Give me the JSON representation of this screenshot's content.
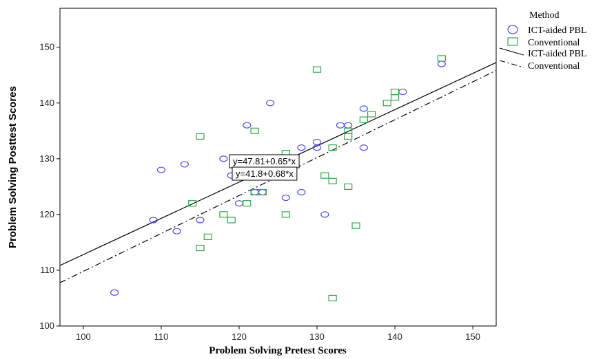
{
  "chart_data": {
    "type": "scatter",
    "xlabel": "Problem Solving Pretest Scores",
    "ylabel": "Problem Solving Posttest Scores",
    "xlim": [
      97,
      153
    ],
    "ylim": [
      100,
      157
    ],
    "x_ticks": [
      100,
      110,
      120,
      130,
      140,
      150
    ],
    "y_ticks": [
      100,
      110,
      120,
      130,
      140,
      150
    ],
    "grid": false,
    "legend": {
      "title": "Method",
      "placement": "right",
      "items": [
        {
          "label": "ICT-aided PBL",
          "symbol": "circle"
        },
        {
          "label": "Conventional",
          "symbol": "square"
        },
        {
          "label": "ICT-aided PBL",
          "symbol": "solid-line"
        },
        {
          "label": "Conventional",
          "symbol": "dash-dot-line"
        }
      ]
    },
    "series": [
      {
        "name": "ICT-aided PBL",
        "marker": "circle",
        "color": "#4b4bf5",
        "points": [
          [
            104,
            106
          ],
          [
            109,
            119
          ],
          [
            110,
            128
          ],
          [
            112,
            117
          ],
          [
            113,
            129
          ],
          [
            115,
            119
          ],
          [
            118,
            130
          ],
          [
            119,
            127
          ],
          [
            120,
            122
          ],
          [
            121,
            136
          ],
          [
            122,
            124
          ],
          [
            123,
            124
          ],
          [
            124,
            140
          ],
          [
            126,
            123
          ],
          [
            128,
            132
          ],
          [
            128,
            124
          ],
          [
            130,
            133
          ],
          [
            130,
            132
          ],
          [
            131,
            120
          ],
          [
            133,
            136
          ],
          [
            134,
            136
          ],
          [
            136,
            139
          ],
          [
            136,
            132
          ],
          [
            141,
            142
          ],
          [
            146,
            147
          ]
        ]
      },
      {
        "name": "Conventional",
        "marker": "square",
        "color": "#2ea84a",
        "points": [
          [
            114,
            122
          ],
          [
            115,
            134
          ],
          [
            115,
            114
          ],
          [
            116,
            116
          ],
          [
            118,
            120
          ],
          [
            119,
            119
          ],
          [
            121,
            122
          ],
          [
            122,
            135
          ],
          [
            122,
            124
          ],
          [
            123,
            124
          ],
          [
            126,
            131
          ],
          [
            126,
            120
          ],
          [
            130,
            146
          ],
          [
            131,
            127
          ],
          [
            132,
            132
          ],
          [
            132,
            126
          ],
          [
            132,
            105
          ],
          [
            134,
            135
          ],
          [
            134,
            134
          ],
          [
            134,
            125
          ],
          [
            135,
            118
          ],
          [
            136,
            137
          ],
          [
            137,
            138
          ],
          [
            139,
            140
          ],
          [
            140,
            141
          ],
          [
            140,
            142
          ],
          [
            146,
            148
          ]
        ]
      }
    ],
    "fit_lines": [
      {
        "name": "ICT-aided PBL",
        "intercept": 47.81,
        "slope": 0.65,
        "style": "solid",
        "label": "y=47.81+0.65*x"
      },
      {
        "name": "Conventional",
        "intercept": 41.8,
        "slope": 0.68,
        "style": "dash-dot",
        "label": "y=41.8+0.68*x"
      }
    ]
  }
}
